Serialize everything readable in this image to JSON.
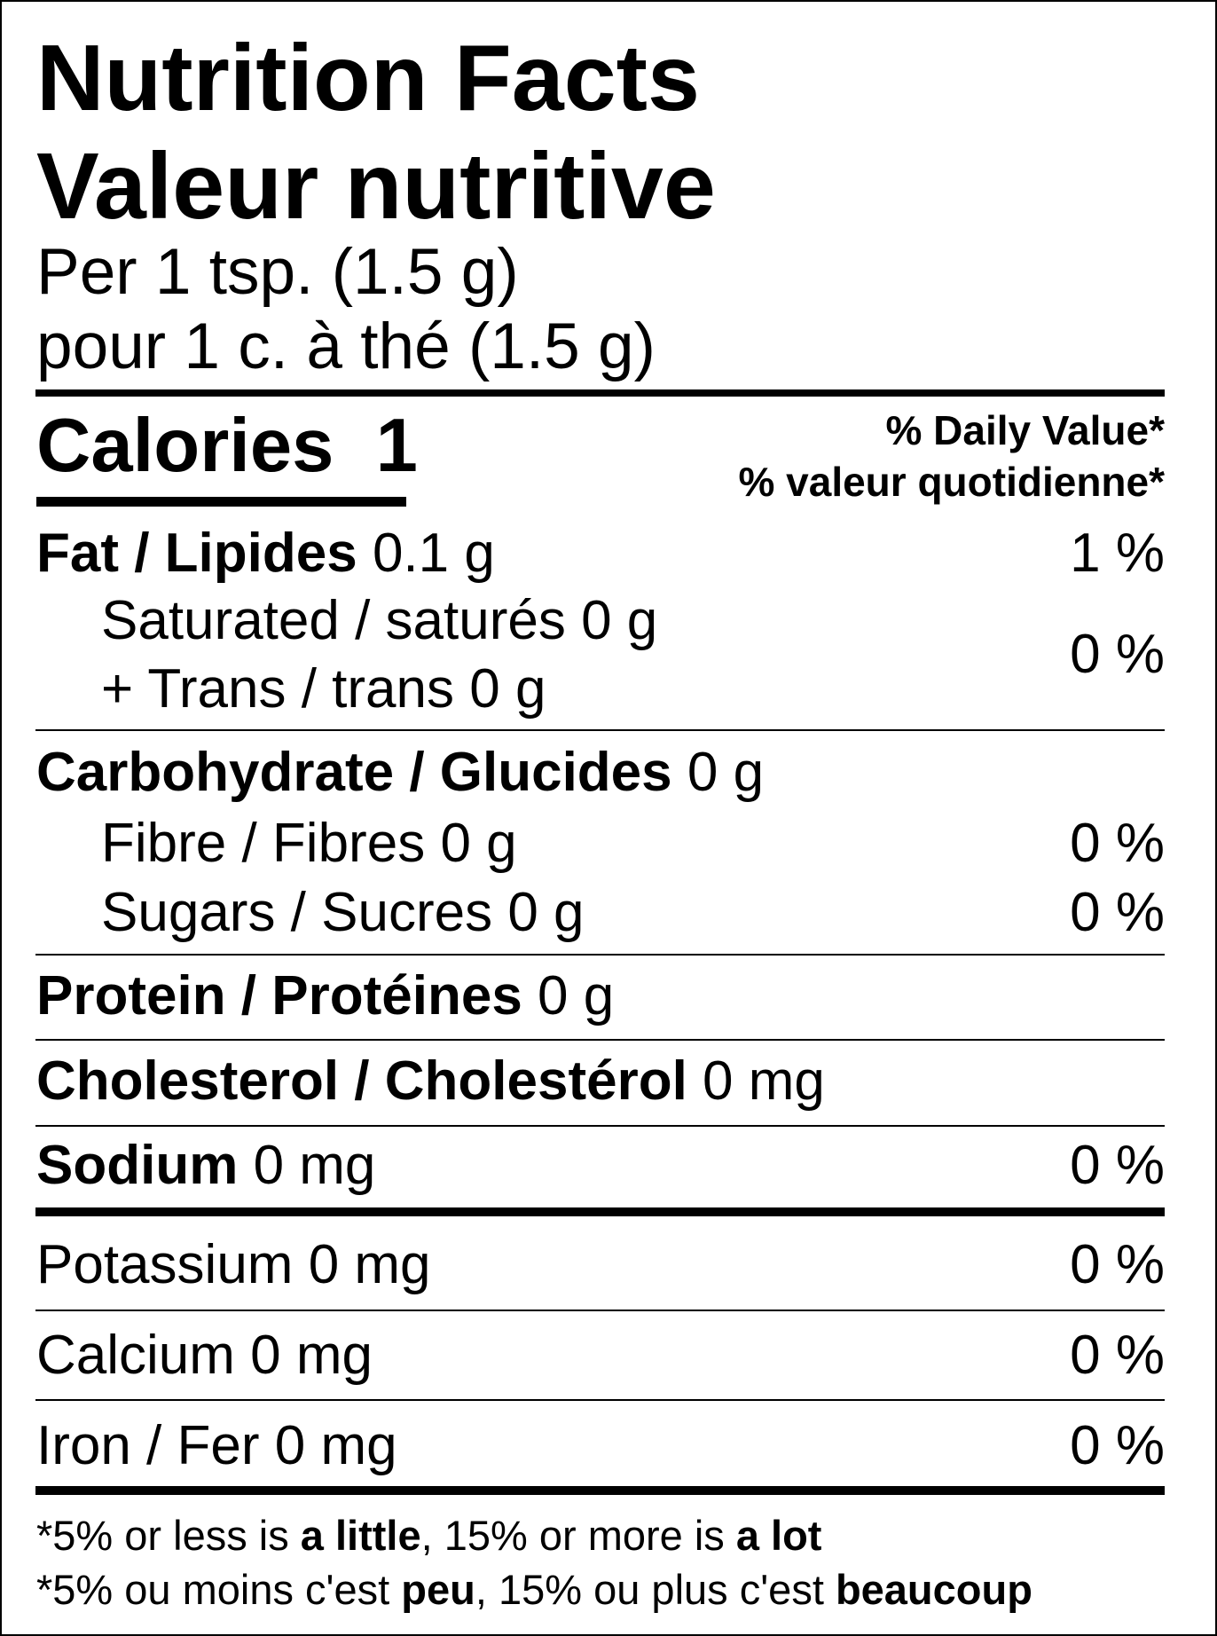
{
  "header": {
    "title_en": "Nutrition Facts",
    "title_fr": "Valeur nutritive",
    "serving_en": "Per 1 tsp. (1.5 g)",
    "serving_fr": "pour 1 c. à thé (1.5 g)"
  },
  "calories": {
    "label": "Calories",
    "value": "1"
  },
  "daily_value_header": {
    "en": "% Daily Value*",
    "fr": "% valeur quotidienne*"
  },
  "nutrients": {
    "fat": {
      "label": "Fat / Lipides",
      "amount": "0.1 g",
      "dv": "1 %"
    },
    "saturated": {
      "label": "Saturated / saturés",
      "amount": "0 g"
    },
    "trans": {
      "label": "+ Trans / trans",
      "amount": "0 g"
    },
    "sat_trans_dv": "0 %",
    "carbohydrate": {
      "label": "Carbohydrate / Glucides",
      "amount": "0 g"
    },
    "fibre": {
      "label": "Fibre / Fibres",
      "amount": "0 g",
      "dv": "0 %"
    },
    "sugars": {
      "label": "Sugars / Sucres",
      "amount": "0 g",
      "dv": "0 %"
    },
    "protein": {
      "label": "Protein / Protéines",
      "amount": "0 g"
    },
    "cholesterol": {
      "label": "Cholesterol / Cholestérol",
      "amount": "0 mg"
    },
    "sodium": {
      "label": "Sodium",
      "amount": "0 mg",
      "dv": "0 %"
    },
    "potassium": {
      "label": "Potassium",
      "amount": "0 mg",
      "dv": "0 %"
    },
    "calcium": {
      "label": "Calcium",
      "amount": "0 mg",
      "dv": "0 %"
    },
    "iron": {
      "label": "Iron / Fer",
      "amount": "0 mg",
      "dv": "0 %"
    }
  },
  "footnote": {
    "en": {
      "p1": "*5% or less is ",
      "b1": "a little",
      "p2": ", 15% or more is ",
      "b2": "a lot"
    },
    "fr": {
      "p1": "*5% ou moins c'est ",
      "b1": "peu",
      "p2": ", 15% ou plus c'est ",
      "b2": "beaucoup"
    }
  }
}
